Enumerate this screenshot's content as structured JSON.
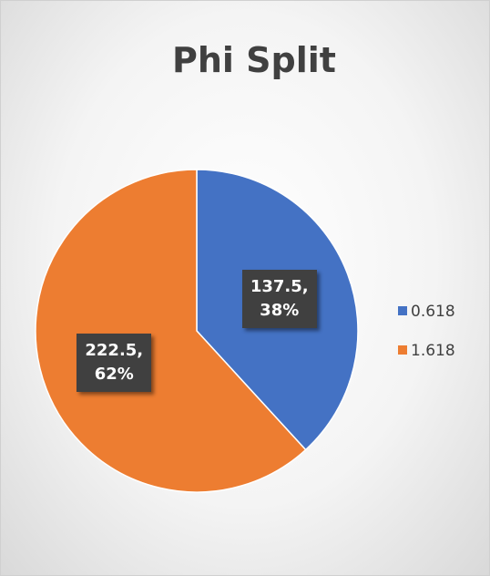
{
  "chart_data": {
    "type": "pie",
    "title": "Phi Split",
    "categories": [
      "0.618",
      "1.618"
    ],
    "values": [
      137.5,
      222.5
    ],
    "value_labels": [
      "137.5, 38%",
      "222.5, 62%"
    ],
    "colors": [
      "#4472c4",
      "#ed7d31"
    ],
    "legend": "right"
  }
}
